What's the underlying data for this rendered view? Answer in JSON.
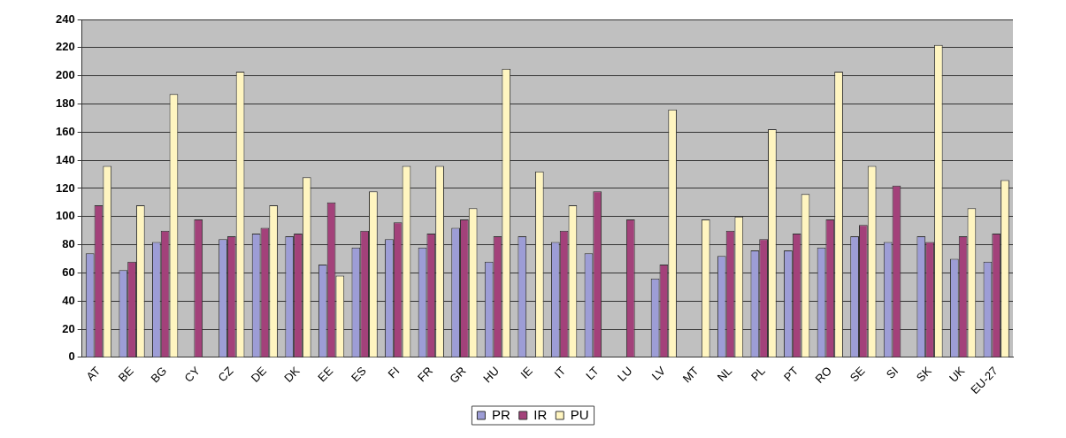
{
  "chart_data": {
    "type": "bar",
    "categories": [
      "AT",
      "BE",
      "BG",
      "CY",
      "CZ",
      "DE",
      "DK",
      "EE",
      "ES",
      "FI",
      "FR",
      "GR",
      "HU",
      "IE",
      "IT",
      "LT",
      "LU",
      "LV",
      "MT",
      "NL",
      "PL",
      "PT",
      "RO",
      "SE",
      "SI",
      "SK",
      "UK",
      "EU-27"
    ],
    "series": [
      {
        "name": "PR",
        "color": "#9d9dd6",
        "values": [
          74,
          62,
          82,
          null,
          84,
          88,
          86,
          66,
          78,
          84,
          78,
          92,
          68,
          86,
          82,
          74,
          null,
          56,
          null,
          72,
          76,
          76,
          78,
          86,
          82,
          86,
          70,
          68
        ]
      },
      {
        "name": "IR",
        "color": "#a3417a",
        "values": [
          108,
          68,
          90,
          98,
          86,
          92,
          88,
          110,
          90,
          96,
          88,
          98,
          86,
          null,
          90,
          118,
          98,
          66,
          null,
          90,
          84,
          88,
          98,
          94,
          122,
          82,
          86,
          88
        ]
      },
      {
        "name": "PU",
        "color": "#fff5c0",
        "values": [
          136,
          108,
          187,
          null,
          203,
          108,
          128,
          58,
          118,
          136,
          136,
          106,
          205,
          132,
          108,
          null,
          null,
          176,
          98,
          100,
          162,
          116,
          203,
          136,
          null,
          222,
          106,
          126
        ]
      }
    ],
    "ylim": [
      0,
      240
    ],
    "yticks": [
      0,
      20,
      40,
      60,
      80,
      100,
      120,
      140,
      160,
      180,
      200,
      220,
      240
    ],
    "grid": "y",
    "legend": "bottom"
  }
}
